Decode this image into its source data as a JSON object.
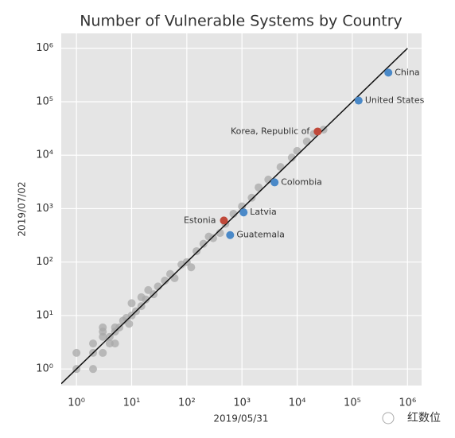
{
  "chart_data": {
    "type": "scatter",
    "title": "Number of Vulnerable Systems by Country",
    "x_label": "2019/05/31",
    "y_label": "2019/07/02",
    "log_x": true,
    "log_y": true,
    "grid": true,
    "background": "#e5e5e5",
    "xlim": [
      0.53,
      1800000
    ],
    "ylim": [
      0.49,
      1900000
    ],
    "xticks": [
      {
        "value": 1,
        "label": "10⁰"
      },
      {
        "value": 10,
        "label": "10¹"
      },
      {
        "value": 100,
        "label": "10²"
      },
      {
        "value": 1000,
        "label": "10³"
      },
      {
        "value": 10000,
        "label": "10⁴"
      },
      {
        "value": 100000,
        "label": "10⁵"
      },
      {
        "value": 1000000,
        "label": "10⁶"
      }
    ],
    "yticks": [
      {
        "value": 1,
        "label": "10⁰"
      },
      {
        "value": 10,
        "label": "10¹"
      },
      {
        "value": 100,
        "label": "10²"
      },
      {
        "value": 1000,
        "label": "10³"
      },
      {
        "value": 10000,
        "label": "10⁴"
      },
      {
        "value": 100000,
        "label": "10⁵"
      },
      {
        "value": 1000000,
        "label": "10⁶"
      }
    ],
    "reference_line": {
      "x": [
        0.53,
        1000000
      ],
      "y": [
        0.53,
        1000000
      ],
      "color": "#111111"
    },
    "points": {
      "color": "#a8a8a8",
      "x": [
        1,
        1,
        2,
        2,
        2,
        3,
        3,
        3,
        3,
        4,
        4,
        5,
        5,
        5,
        6,
        7,
        8,
        9,
        10,
        10,
        12,
        15,
        15,
        18,
        20,
        25,
        30,
        40,
        50,
        60,
        80,
        100,
        120,
        150,
        200,
        250,
        300,
        400,
        500,
        700,
        1000,
        1500,
        2000,
        3000,
        5000,
        8000,
        10000,
        15000,
        20000,
        30000
      ],
      "y": [
        1,
        2,
        1,
        2,
        3,
        2,
        4,
        6,
        5,
        3,
        4,
        5,
        6,
        3,
        6,
        8,
        9,
        7,
        17,
        10,
        12,
        15,
        22,
        20,
        30,
        25,
        35,
        45,
        60,
        50,
        90,
        100,
        80,
        160,
        220,
        300,
        280,
        350,
        520,
        800,
        1100,
        1600,
        2500,
        3500,
        6000,
        9000,
        12000,
        18000,
        25000,
        30000
      ]
    },
    "highlighted": {
      "labels": [
        "China",
        "United States",
        "Korea, Republic of",
        "Colombia",
        "Latvia",
        "Estonia",
        "Guatemala"
      ],
      "x": [
        450000,
        130000,
        23500,
        3900,
        1070,
        470,
        610
      ],
      "y": [
        350000,
        105000,
        27700,
        3100,
        850,
        600,
        320
      ],
      "colors": [
        "#4a89c8",
        "#4a89c8",
        "#c0493a",
        "#4a89c8",
        "#4a89c8",
        "#c0493a",
        "#4a89c8"
      ]
    },
    "watermark": "红数位"
  }
}
